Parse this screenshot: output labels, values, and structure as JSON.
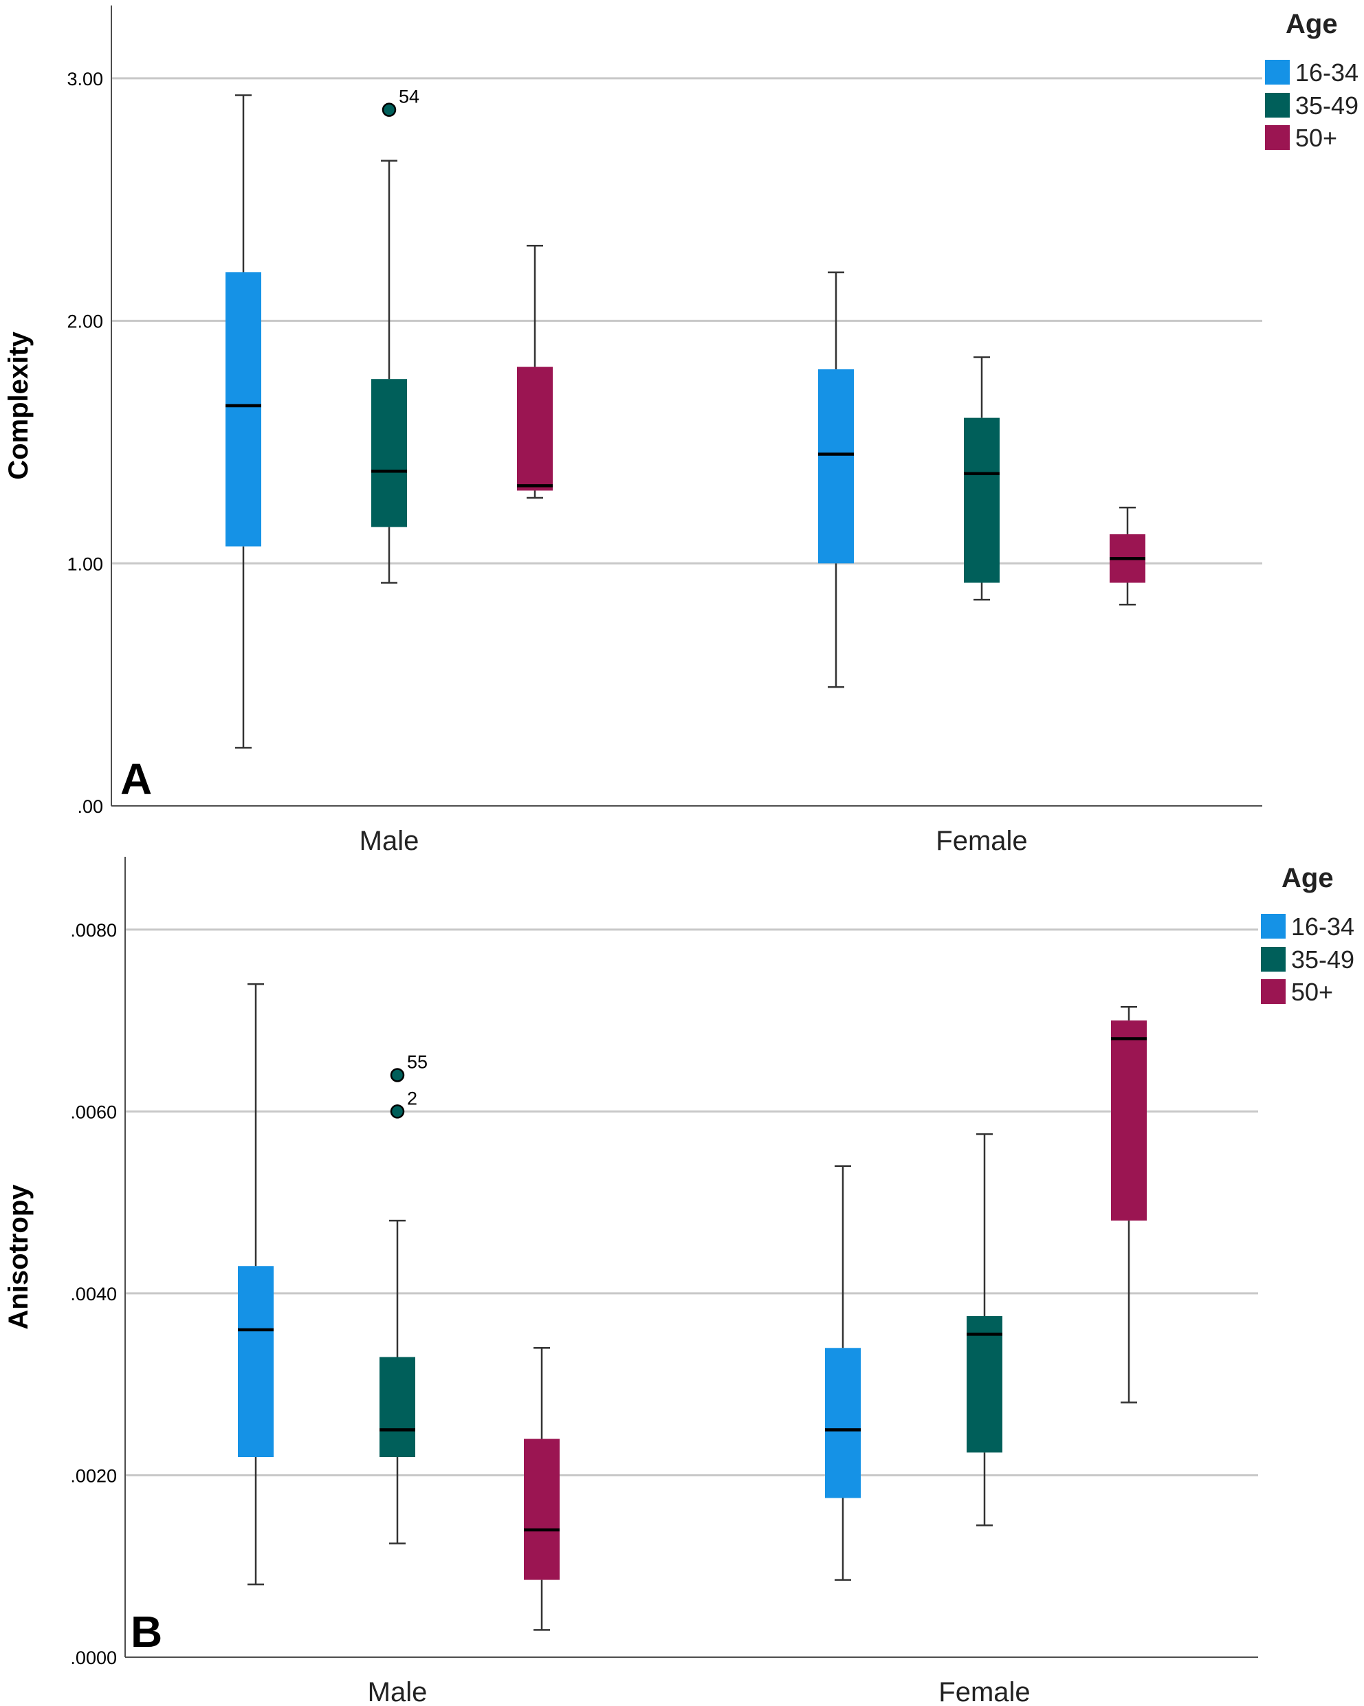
{
  "colors": {
    "16-34": "#1592e6",
    "35-49": "#005f5a",
    "50+": "#9b1552",
    "grid": "#c8c8c8",
    "axis": "#4d4d4d"
  },
  "chart_data": [
    {
      "type": "box",
      "panel_label": "A",
      "ylabel": "Complexity",
      "xlabel": "",
      "ylim": [
        0,
        3.3
      ],
      "y_ticks": [
        0,
        1,
        2,
        3
      ],
      "y_tick_labels": [
        ".00",
        "1.00",
        "2.00",
        "3.00"
      ],
      "grid": true,
      "categories": [
        "Male",
        "Female"
      ],
      "legend": {
        "title": "Age",
        "placement": "top-right",
        "entries": [
          "16-34",
          "35-49",
          "50+"
        ]
      },
      "series": [
        {
          "name": "16-34",
          "color_key": "16-34",
          "boxes": [
            {
              "category": "Male",
              "min": 0.24,
              "q1": 1.07,
              "median": 1.65,
              "q3": 2.2,
              "max": 2.93,
              "outliers": []
            },
            {
              "category": "Female",
              "min": 0.49,
              "q1": 1.0,
              "median": 1.45,
              "q3": 1.8,
              "max": 2.2,
              "outliers": []
            }
          ]
        },
        {
          "name": "35-49",
          "color_key": "35-49",
          "boxes": [
            {
              "category": "Male",
              "min": 0.92,
              "q1": 1.15,
              "median": 1.38,
              "q3": 1.76,
              "max": 2.66,
              "outliers": [
                {
                  "value": 2.87,
                  "label": "54"
                }
              ]
            },
            {
              "category": "Female",
              "min": 0.85,
              "q1": 0.92,
              "median": 1.37,
              "q3": 1.6,
              "max": 1.85,
              "outliers": []
            }
          ]
        },
        {
          "name": "50+",
          "color_key": "50+",
          "boxes": [
            {
              "category": "Male",
              "min": 1.27,
              "q1": 1.3,
              "median": 1.32,
              "q3": 1.81,
              "max": 2.31,
              "outliers": []
            },
            {
              "category": "Female",
              "min": 0.83,
              "q1": 0.92,
              "median": 1.02,
              "q3": 1.12,
              "max": 1.23,
              "outliers": []
            }
          ]
        }
      ]
    },
    {
      "type": "box",
      "panel_label": "B",
      "ylabel": "Anisotropy",
      "xlabel": "",
      "ylim": [
        0,
        0.0088
      ],
      "y_ticks": [
        0,
        0.002,
        0.004,
        0.006,
        0.008
      ],
      "y_tick_labels": [
        ".0000",
        ".0020",
        ".0040",
        ".0060",
        ".0080"
      ],
      "grid": true,
      "categories": [
        "Male",
        "Female"
      ],
      "legend": {
        "title": "Age",
        "placement": "top-right",
        "entries": [
          "16-34",
          "35-49",
          "50+"
        ]
      },
      "series": [
        {
          "name": "16-34",
          "color_key": "16-34",
          "boxes": [
            {
              "category": "Male",
              "min": 0.0008,
              "q1": 0.0022,
              "median": 0.0036,
              "q3": 0.0043,
              "max": 0.0074,
              "outliers": []
            },
            {
              "category": "Female",
              "min": 0.00085,
              "q1": 0.00175,
              "median": 0.0025,
              "q3": 0.0034,
              "max": 0.0054,
              "outliers": []
            }
          ]
        },
        {
          "name": "35-49",
          "color_key": "35-49",
          "boxes": [
            {
              "category": "Male",
              "min": 0.00125,
              "q1": 0.0022,
              "median": 0.0025,
              "q3": 0.0033,
              "max": 0.0048,
              "outliers": [
                {
                  "value": 0.0064,
                  "label": "55"
                },
                {
                  "value": 0.006,
                  "label": "2"
                }
              ]
            },
            {
              "category": "Female",
              "min": 0.00145,
              "q1": 0.00225,
              "median": 0.00355,
              "q3": 0.00375,
              "max": 0.00575,
              "outliers": []
            }
          ]
        },
        {
          "name": "50+",
          "color_key": "50+",
          "boxes": [
            {
              "category": "Male",
              "min": 0.0003,
              "q1": 0.00085,
              "median": 0.0014,
              "q3": 0.0024,
              "max": 0.0034,
              "outliers": []
            },
            {
              "category": "Female",
              "min": 0.0028,
              "q1": 0.0048,
              "median": 0.0068,
              "q3": 0.007,
              "max": 0.00715,
              "outliers": []
            }
          ]
        }
      ]
    }
  ]
}
